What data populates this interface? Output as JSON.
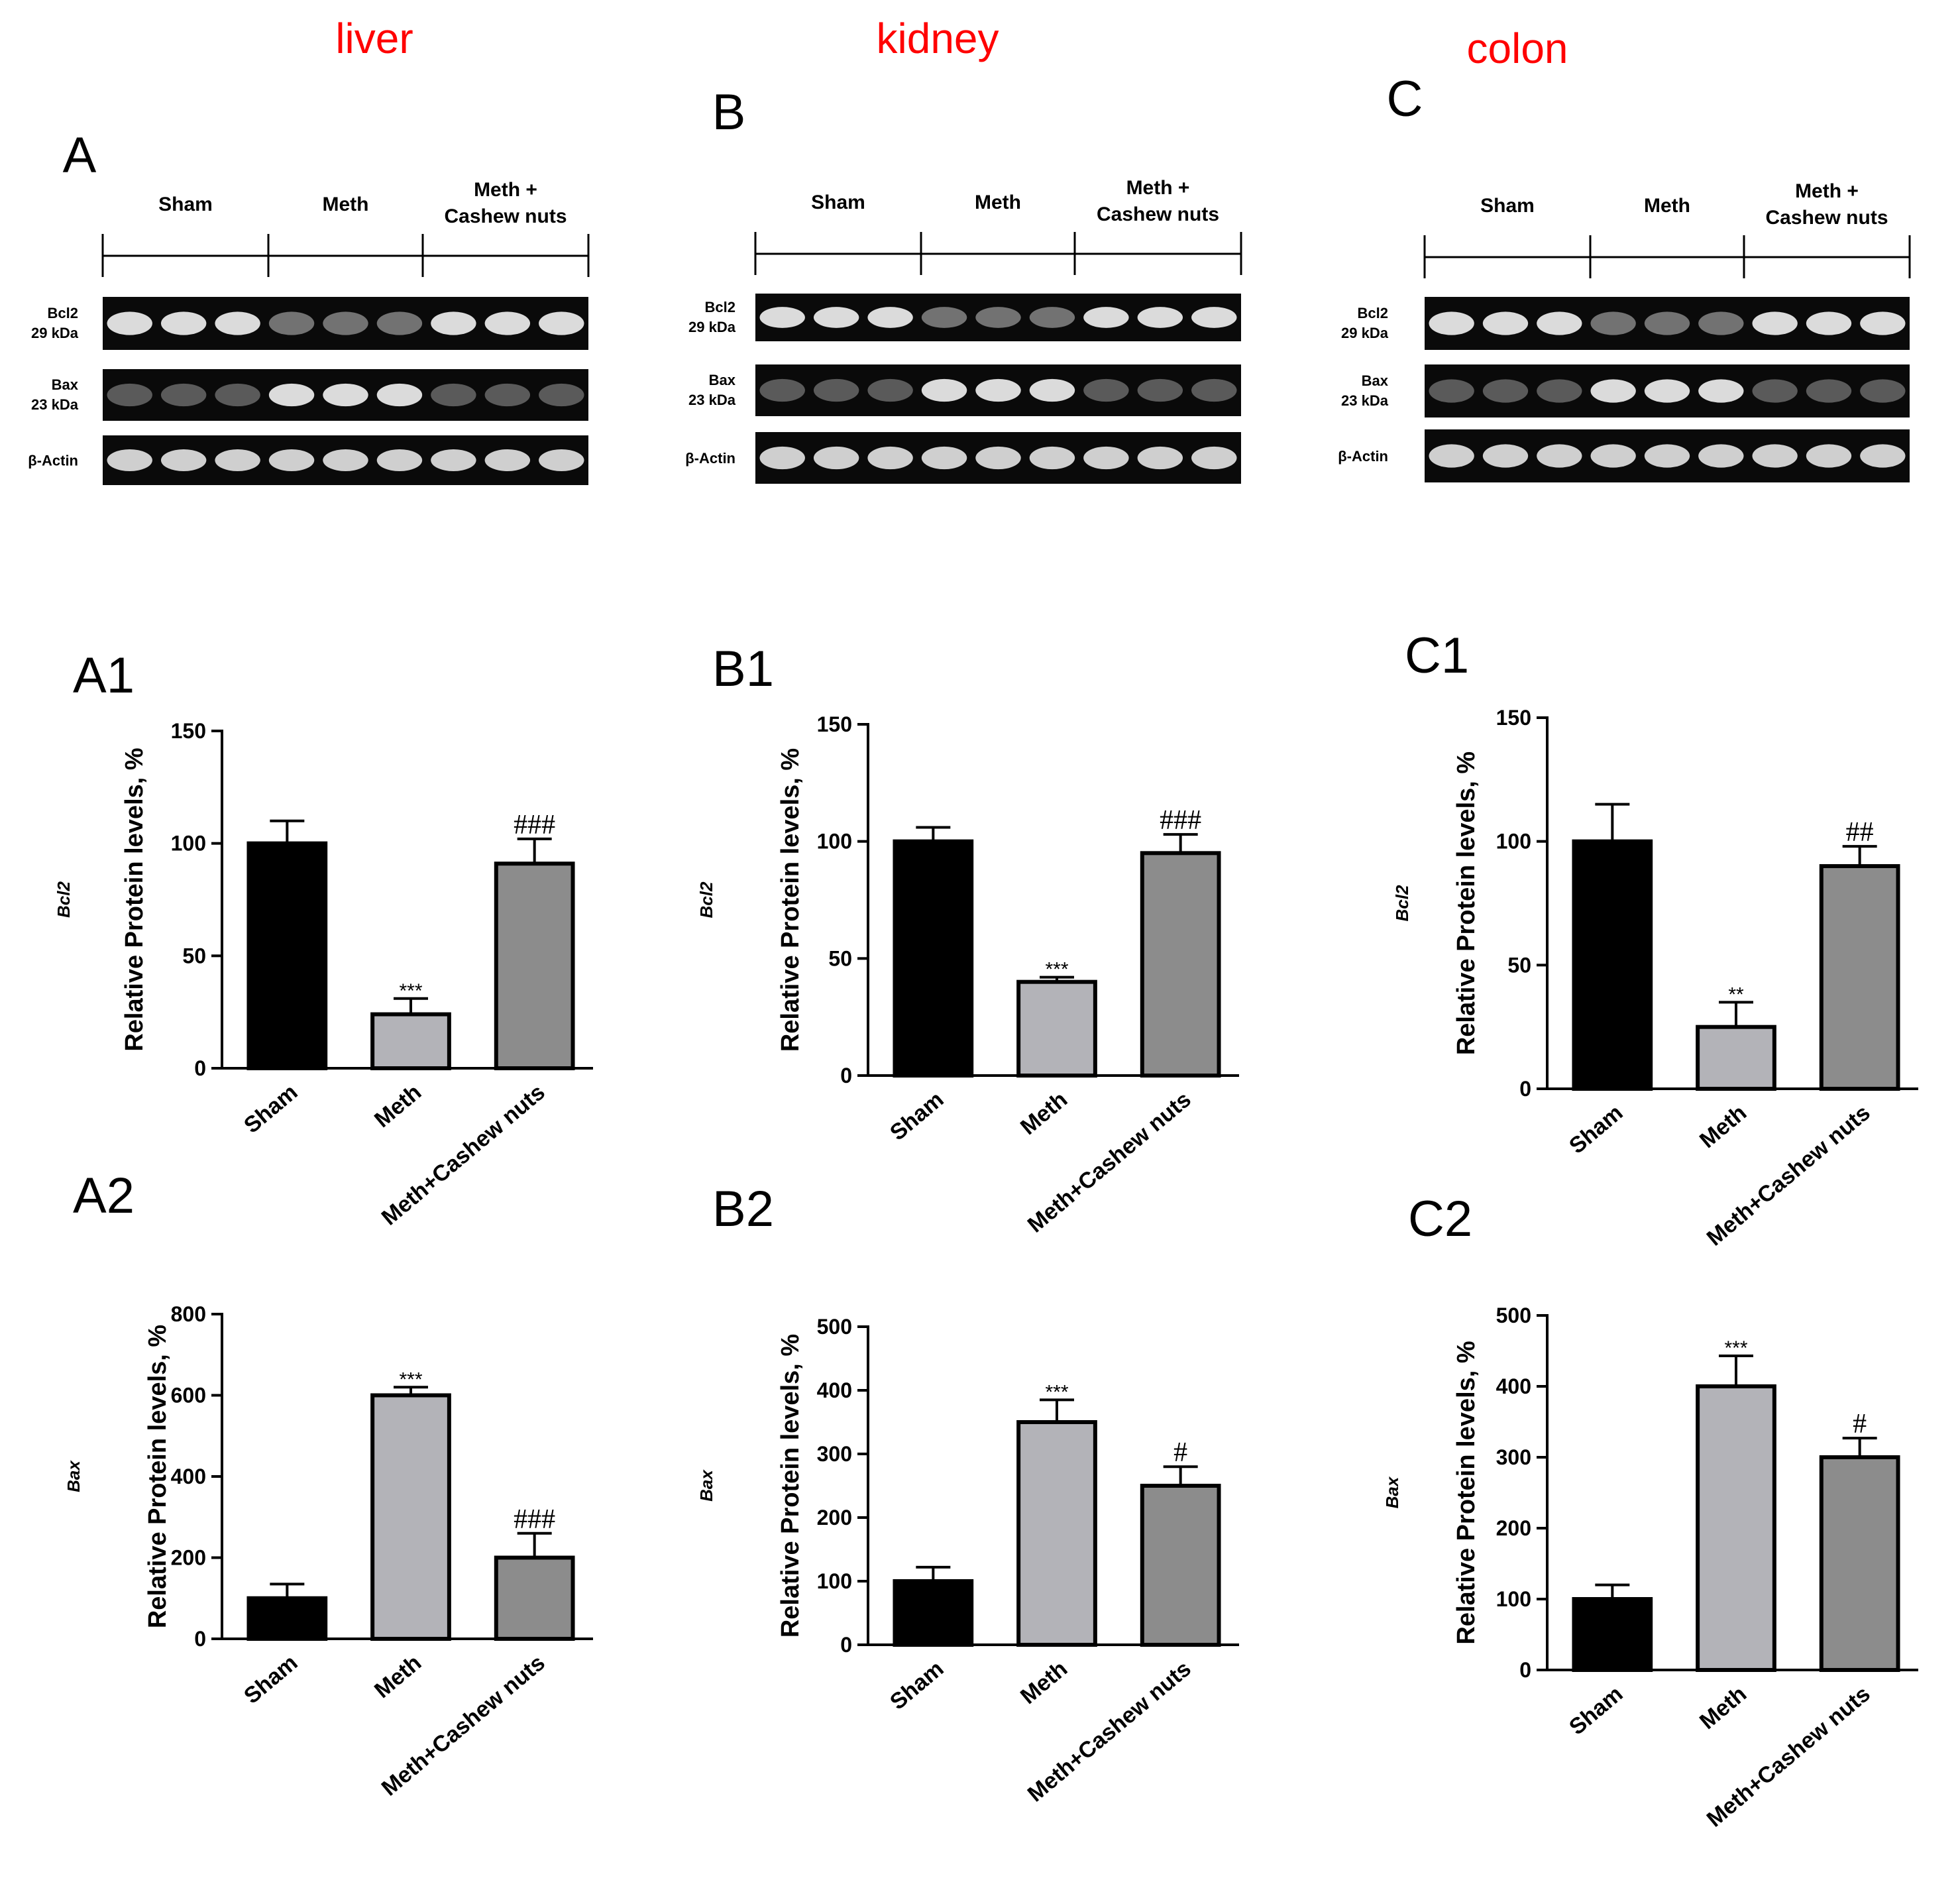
{
  "tissues": [
    "liver",
    "kidney",
    "colon"
  ],
  "tissue_color": "#ff0000",
  "blot_panels": [
    {
      "label": "A",
      "groups": [
        "Sham",
        "Meth",
        "Meth +",
        "Cashew nuts"
      ],
      "rows": [
        {
          "name": "Bcl2",
          "size": "29 kDa"
        },
        {
          "name": "Bax",
          "size": "23 kDa"
        },
        {
          "name": "β-Actin",
          "size": ""
        }
      ]
    },
    {
      "label": "B",
      "groups": [
        "Sham",
        "Meth",
        "Meth +",
        "Cashew nuts"
      ],
      "rows": [
        {
          "name": "Bcl2",
          "size": "29 kDa"
        },
        {
          "name": "Bax",
          "size": "23 kDa"
        },
        {
          "name": "β-Actin",
          "size": ""
        }
      ]
    },
    {
      "label": "C",
      "groups": [
        "Sham",
        "Meth",
        "Meth +",
        "Cashew nuts"
      ],
      "rows": [
        {
          "name": "Bcl2",
          "size": "29 kDa"
        },
        {
          "name": "Bax",
          "size": "23 kDa"
        },
        {
          "name": "β-Actin",
          "size": ""
        }
      ]
    }
  ],
  "bar_colors": [
    "#000000",
    "#b3b3b8",
    "#8c8c8c"
  ],
  "chart_data": [
    {
      "panel": "A1",
      "type": "bar",
      "protein": "Bcl2",
      "ylabel": "Relative Protein levels, %",
      "categories": [
        "Sham",
        "Meth",
        "Meth+Cashew nuts"
      ],
      "values": [
        100,
        24,
        91
      ],
      "errors": [
        10,
        7,
        11
      ],
      "ylim": [
        0,
        150
      ],
      "yticks": [
        "0",
        "50",
        "100",
        "150"
      ],
      "annotations": [
        "",
        "***",
        "###"
      ]
    },
    {
      "panel": "B1",
      "type": "bar",
      "protein": "Bcl2",
      "ylabel": "Relative Protein levels, %",
      "categories": [
        "Sham",
        "Meth",
        "Meth+Cashew nuts"
      ],
      "values": [
        100,
        40,
        95
      ],
      "errors": [
        6,
        2,
        8
      ],
      "ylim": [
        0,
        150
      ],
      "yticks": [
        "0",
        "50",
        "100",
        "150"
      ],
      "annotations": [
        "",
        "***",
        "###"
      ]
    },
    {
      "panel": "C1",
      "type": "bar",
      "protein": "Bcl2",
      "ylabel": "Relative Protein levels, %",
      "categories": [
        "Sham",
        "Meth",
        "Meth+Cashew nuts"
      ],
      "values": [
        100,
        25,
        90
      ],
      "errors": [
        15,
        10,
        8
      ],
      "ylim": [
        0,
        150
      ],
      "yticks": [
        "0",
        "50",
        "100",
        "150"
      ],
      "annotations": [
        "",
        "**",
        "##"
      ]
    },
    {
      "panel": "A2",
      "type": "bar",
      "protein": "Bax",
      "ylabel": "Relative Protein levels, %",
      "categories": [
        "Sham",
        "Meth",
        "Meth+Cashew nuts"
      ],
      "values": [
        100,
        600,
        200
      ],
      "errors": [
        35,
        20,
        60
      ],
      "ylim": [
        0,
        800
      ],
      "yticks": [
        "0",
        "200",
        "400",
        "600",
        "800"
      ],
      "annotations": [
        "",
        "***",
        "###"
      ]
    },
    {
      "panel": "B2",
      "type": "bar",
      "protein": "Bax",
      "ylabel": "Relative Protein levels, %",
      "categories": [
        "Sham",
        "Meth",
        "Meth+Cashew nuts"
      ],
      "values": [
        100,
        350,
        250
      ],
      "errors": [
        22,
        35,
        30
      ],
      "ylim": [
        0,
        500
      ],
      "yticks": [
        "0",
        "100",
        "200",
        "300",
        "400",
        "500"
      ],
      "annotations": [
        "",
        "***",
        "#"
      ]
    },
    {
      "panel": "C2",
      "type": "bar",
      "protein": "Bax",
      "ylabel": "Relative Protein levels, %",
      "categories": [
        "Sham",
        "Meth",
        "Meth+Cashew nuts"
      ],
      "values": [
        100,
        400,
        300
      ],
      "errors": [
        20,
        43,
        27
      ],
      "ylim": [
        0,
        500
      ],
      "yticks": [
        "0",
        "100",
        "200",
        "300",
        "400",
        "500"
      ],
      "annotations": [
        "",
        "***",
        "#"
      ]
    }
  ]
}
